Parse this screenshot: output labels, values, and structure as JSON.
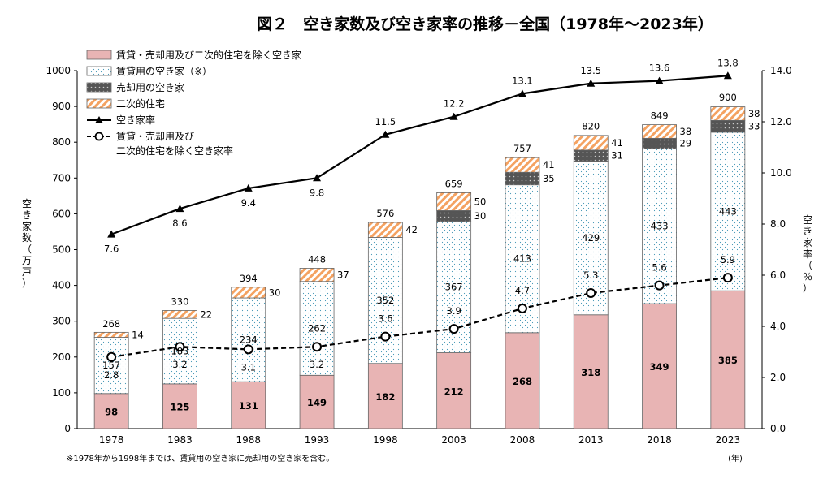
{
  "chart_data": {
    "type": "bar",
    "title": "図２　空き家数及び空き家率の推移－全国（1978年～2023年）",
    "ylabel": "空き家数（万戸）",
    "y2label": "空き家率（％）",
    "xunit": "(年)",
    "ylim": [
      0,
      1000
    ],
    "y2lim": [
      0,
      14
    ],
    "yticks": [
      "0",
      "100",
      "200",
      "300",
      "400",
      "500",
      "600",
      "700",
      "800",
      "900",
      "1000"
    ],
    "y2ticks": [
      "0.0",
      "2.0",
      "4.0",
      "6.0",
      "8.0",
      "10.0",
      "12.0",
      "14.0"
    ],
    "categories": [
      "1978",
      "1983",
      "1988",
      "1993",
      "1998",
      "2003",
      "2008",
      "2013",
      "2018",
      "2023"
    ],
    "series": [
      {
        "name": "賃貸・売却用及び二次的住宅を除く空き家",
        "kind": "bar",
        "color": "#e8b4b4",
        "values": [
          98,
          125,
          131,
          149,
          182,
          212,
          268,
          318,
          349,
          385
        ]
      },
      {
        "name": "賃貸用の空き家（※）",
        "kind": "bar",
        "color": "#ffffff",
        "values": [
          157,
          183,
          234,
          262,
          352,
          367,
          413,
          429,
          433,
          443
        ]
      },
      {
        "name": "売却用の空き家",
        "kind": "bar",
        "color": "#555555",
        "values": [
          null,
          null,
          null,
          null,
          null,
          30,
          35,
          31,
          29,
          33
        ]
      },
      {
        "name": "二次的住宅",
        "kind": "bar",
        "color": "#f4a261",
        "values": [
          14,
          22,
          30,
          37,
          42,
          50,
          41,
          41,
          38,
          38
        ]
      },
      {
        "name": "空き家率",
        "kind": "line",
        "axis": "right",
        "values": [
          7.6,
          8.6,
          9.4,
          9.8,
          11.5,
          12.2,
          13.1,
          13.5,
          13.6,
          13.8
        ],
        "labels": [
          "7.6",
          "8.6",
          "9.4",
          "9.8",
          "11.5",
          "12.2",
          "13.1",
          "13.5",
          "13.6",
          "13.8"
        ]
      },
      {
        "name": "賃貸・売却用及び二次的住宅を除く空き家率",
        "kind": "line",
        "axis": "right",
        "values": [
          2.8,
          3.2,
          3.1,
          3.2,
          3.6,
          3.9,
          4.7,
          5.3,
          5.6,
          5.9
        ],
        "labels": [
          "2.8",
          "3.2",
          "3.1",
          "3.2",
          "3.6",
          "3.9",
          "4.7",
          "5.3",
          "5.6",
          "5.9"
        ]
      }
    ],
    "totals": [
      268,
      330,
      394,
      448,
      576,
      659,
      757,
      820,
      849,
      900
    ],
    "legend": {
      "position": "top-left",
      "entries": [
        "賃貸・売却用及び二次的住宅を除く空き家",
        "賃貸用の空き家（※）",
        "売却用の空き家",
        "二次的住宅",
        "空き家率",
        "賃貸・売却用及び",
        "二次的住宅を除く空き家率"
      ]
    },
    "note": "※1978年から1998年までは、賃貸用の空き家に売却用の空き家を含む。"
  }
}
